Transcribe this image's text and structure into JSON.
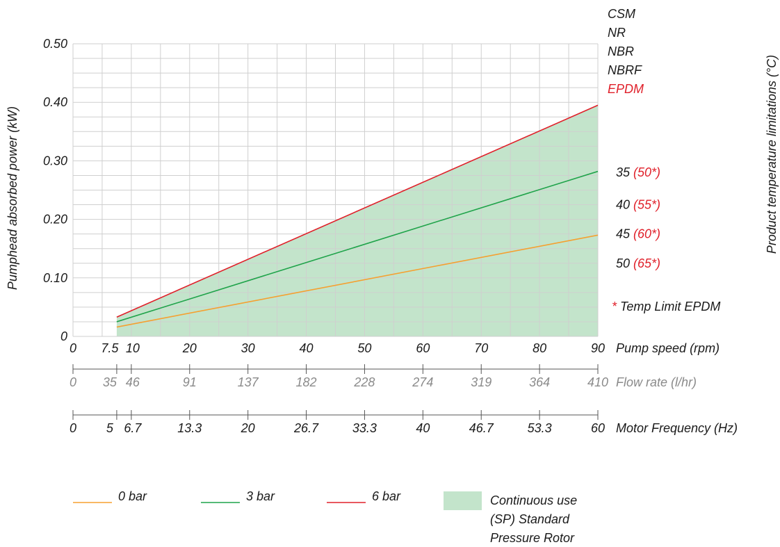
{
  "chart_data": {
    "type": "line",
    "ylabel": "Pumphead absorbed power (kW)",
    "ylim": [
      0,
      0.5
    ],
    "y_ticks": [
      "0",
      "0.10",
      "0.20",
      "0.30",
      "0.40",
      "0.50"
    ],
    "xlim": [
      0,
      90
    ],
    "grid": true,
    "x_axes": [
      {
        "label": "Pump speed (rpm)",
        "ticks": [
          {
            "at": 0,
            "text": "0"
          },
          {
            "at": 7.5,
            "text": "7.5"
          },
          {
            "at": 10,
            "text": "10"
          },
          {
            "at": 20,
            "text": "20"
          },
          {
            "at": 30,
            "text": "30"
          },
          {
            "at": 40,
            "text": "40"
          },
          {
            "at": 50,
            "text": "50"
          },
          {
            "at": 60,
            "text": "60"
          },
          {
            "at": 70,
            "text": "70"
          },
          {
            "at": 80,
            "text": "80"
          },
          {
            "at": 90,
            "text": "90"
          }
        ]
      },
      {
        "label": "Flow rate (l/hr)",
        "ticks": [
          {
            "at": 0,
            "text": "0"
          },
          {
            "at": 7.5,
            "text": "35"
          },
          {
            "at": 10,
            "text": "46"
          },
          {
            "at": 20,
            "text": "91"
          },
          {
            "at": 30,
            "text": "137"
          },
          {
            "at": 40,
            "text": "182"
          },
          {
            "at": 50,
            "text": "228"
          },
          {
            "at": 60,
            "text": "274"
          },
          {
            "at": 70,
            "text": "319"
          },
          {
            "at": 80,
            "text": "364"
          },
          {
            "at": 90,
            "text": "410"
          }
        ]
      },
      {
        "label": "Motor Frequency (Hz)",
        "ticks": [
          {
            "at": 0,
            "text": "0"
          },
          {
            "at": 7.5,
            "text": "5"
          },
          {
            "at": 10,
            "text": "6.7"
          },
          {
            "at": 20,
            "text": "13.3"
          },
          {
            "at": 30,
            "text": "20"
          },
          {
            "at": 40,
            "text": "26.7"
          },
          {
            "at": 50,
            "text": "33.3"
          },
          {
            "at": 60,
            "text": "40"
          },
          {
            "at": 70,
            "text": "46.7"
          },
          {
            "at": 80,
            "text": "53.3"
          },
          {
            "at": 90,
            "text": "60"
          }
        ]
      }
    ],
    "series": [
      {
        "name": "0 bar",
        "color": "#f5a030",
        "x": [
          7.5,
          90
        ],
        "y": [
          0.016,
          0.173
        ]
      },
      {
        "name": "3 bar",
        "color": "#1fa34a",
        "x": [
          7.5,
          90
        ],
        "y": [
          0.025,
          0.282
        ]
      },
      {
        "name": "6 bar",
        "color": "#e0202a",
        "x": [
          7.5,
          90
        ],
        "y": [
          0.033,
          0.395
        ]
      }
    ],
    "area": {
      "name_lines": [
        "Continuous use",
        "(SP) Standard",
        "Pressure Rotor"
      ],
      "color": "#c3e4cb",
      "x_from": 7.5,
      "x_to": 90,
      "lower": 0,
      "upper_from": 0.033,
      "upper_to": 0.395
    },
    "right_axis": {
      "title": "Product temperature limitations (°C)",
      "materials": [
        {
          "text": "CSM",
          "color": "#1a1a1a"
        },
        {
          "text": "NR",
          "color": "#1a1a1a"
        },
        {
          "text": "NBR",
          "color": "#1a1a1a"
        },
        {
          "text": "NBRF",
          "color": "#1a1a1a"
        },
        {
          "text": "EPDM",
          "color": "#e0202a"
        }
      ],
      "temps": [
        {
          "value": "35",
          "epdm": "(50*)",
          "at": 0.28
        },
        {
          "value": "40",
          "epdm": "(55*)",
          "at": 0.225
        },
        {
          "value": "45",
          "epdm": "(60*)",
          "at": 0.175
        },
        {
          "value": "50",
          "epdm": "(65*)",
          "at": 0.125
        }
      ],
      "footnote_mark": "*",
      "footnote": "Temp Limit EPDM"
    },
    "legend_position": "bottom"
  }
}
